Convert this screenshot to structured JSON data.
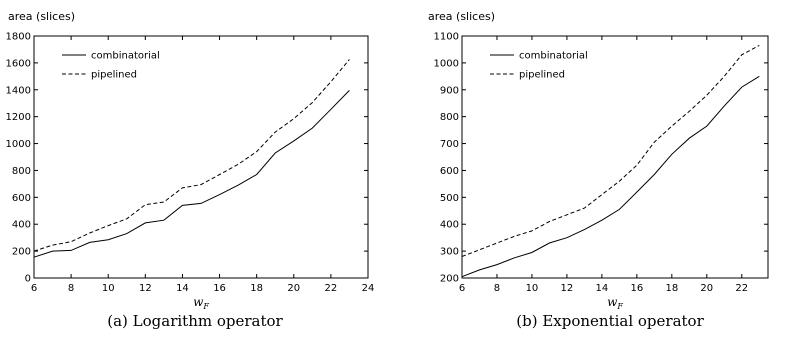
{
  "chart_data": [
    {
      "type": "line",
      "ylabel": "area (slices)",
      "xlabel_main": "w",
      "xlabel_sub": "F",
      "caption": "(a) Logarithm operator",
      "xlim": [
        6,
        24
      ],
      "ylim": [
        0,
        1800
      ],
      "xticks": [
        6,
        8,
        10,
        12,
        14,
        16,
        18,
        20,
        22,
        24
      ],
      "yticks": [
        0,
        200,
        400,
        600,
        800,
        1000,
        1200,
        1400,
        1600,
        1800
      ],
      "legend_position": "top-left",
      "x": [
        6,
        7,
        8,
        9,
        10,
        11,
        12,
        13,
        14,
        15,
        16,
        17,
        18,
        19,
        20,
        21,
        22,
        23
      ],
      "series": [
        {
          "name": "combinatorial",
          "style": "solid",
          "values": [
            155,
            200,
            205,
            265,
            285,
            330,
            410,
            430,
            540,
            555,
            620,
            690,
            770,
            930,
            1020,
            1115,
            1255,
            1395
          ]
        },
        {
          "name": "pipelined",
          "style": "dashed",
          "values": [
            200,
            245,
            270,
            335,
            390,
            440,
            545,
            565,
            670,
            695,
            770,
            845,
            940,
            1085,
            1185,
            1305,
            1460,
            1625
          ]
        }
      ]
    },
    {
      "type": "line",
      "ylabel": "area (slices)",
      "xlabel_main": "w",
      "xlabel_sub": "F",
      "caption": "(b) Exponential operator",
      "xlim": [
        6,
        23.5
      ],
      "ylim": [
        200,
        1100
      ],
      "xticks": [
        6,
        8,
        10,
        12,
        14,
        16,
        18,
        20,
        22
      ],
      "yticks": [
        200,
        300,
        400,
        500,
        600,
        700,
        800,
        900,
        1000,
        1100
      ],
      "legend_position": "top-left",
      "x": [
        6,
        7,
        8,
        9,
        10,
        11,
        12,
        13,
        14,
        15,
        16,
        17,
        18,
        19,
        20,
        21,
        22,
        23
      ],
      "series": [
        {
          "name": "combinatorial",
          "style": "solid",
          "values": [
            205,
            230,
            250,
            275,
            295,
            330,
            350,
            380,
            415,
            455,
            520,
            585,
            660,
            720,
            765,
            840,
            910,
            950
          ]
        },
        {
          "name": "pipelined",
          "style": "dashed",
          "values": [
            280,
            305,
            330,
            355,
            375,
            410,
            435,
            460,
            510,
            560,
            620,
            705,
            765,
            820,
            880,
            950,
            1030,
            1065
          ]
        }
      ]
    }
  ]
}
